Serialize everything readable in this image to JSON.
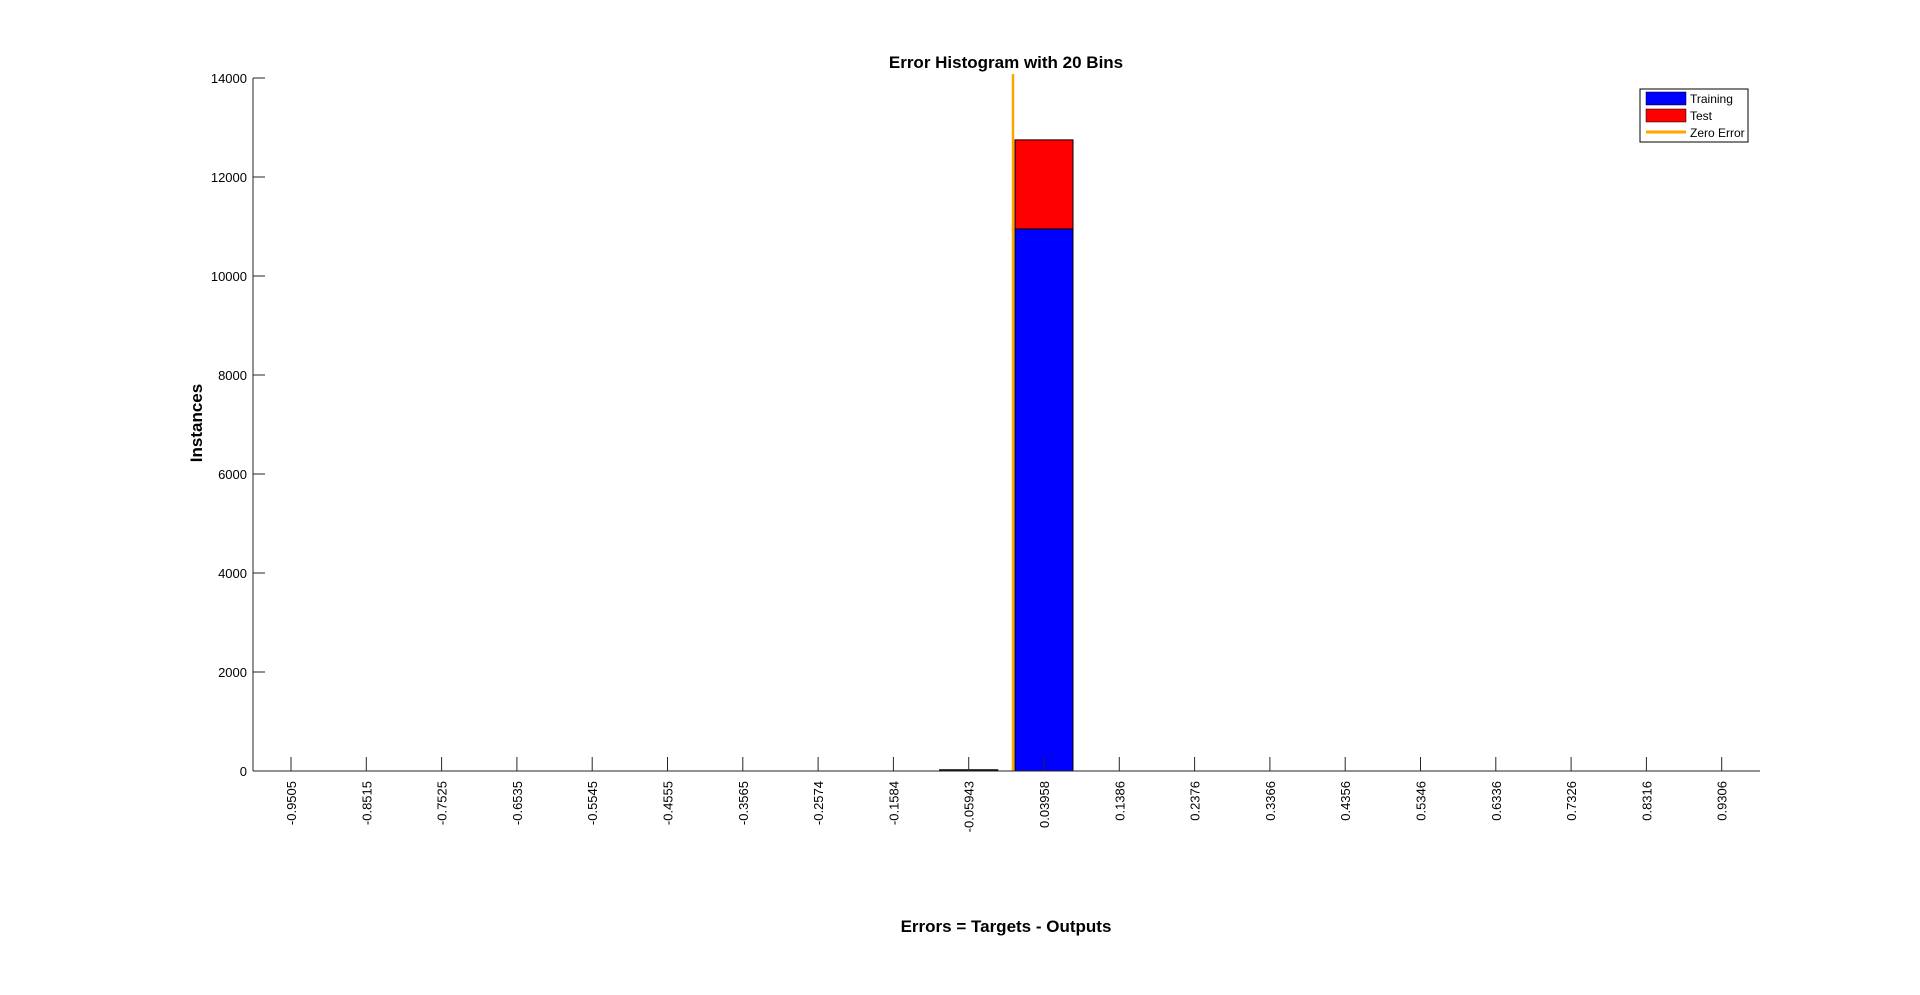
{
  "chart_data": {
    "type": "bar",
    "title": "Error Histogram with 20 Bins",
    "xlabel": "Errors = Targets - Outputs",
    "ylabel": "Instances",
    "ylim": [
      0,
      14000
    ],
    "yticks": [
      0,
      2000,
      4000,
      6000,
      8000,
      10000,
      12000,
      14000
    ],
    "categories": [
      "-0.9505",
      "-0.8515",
      "-0.7525",
      "-0.6535",
      "-0.5545",
      "-0.4555",
      "-0.3565",
      "-0.2574",
      "-0.1584",
      "-0.05943",
      "0.03958",
      "0.1386",
      "0.2376",
      "0.3366",
      "0.4356",
      "0.5346",
      "0.6336",
      "0.7326",
      "0.8316",
      "0.9306"
    ],
    "stacked": true,
    "series": [
      {
        "name": "Training",
        "color": "#0000ff",
        "values": [
          0,
          0,
          0,
          0,
          0,
          0,
          0,
          0,
          0,
          20,
          10950,
          0,
          0,
          0,
          0,
          0,
          0,
          0,
          0,
          0
        ]
      },
      {
        "name": "Test",
        "color": "#ff0000",
        "values": [
          0,
          0,
          0,
          0,
          0,
          0,
          0,
          0,
          0,
          5,
          1800,
          0,
          0,
          0,
          0,
          0,
          0,
          0,
          0,
          0
        ]
      }
    ],
    "zero_error": {
      "name": "Zero Error",
      "color": "#ffa500",
      "x": 0
    },
    "legend_position": "top-right",
    "grid": false
  }
}
